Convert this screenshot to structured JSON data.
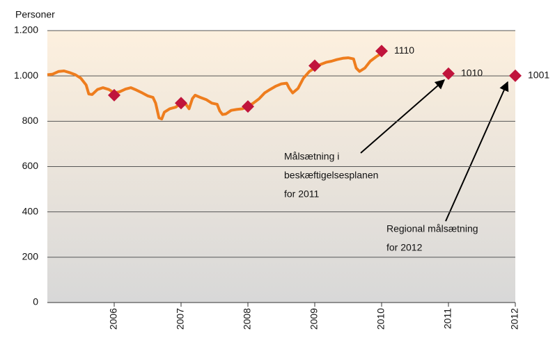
{
  "chart_data": {
    "type": "line",
    "y_label": "Personer",
    "xlim": [
      2005,
      2012
    ],
    "xticks": [
      2006,
      2007,
      2008,
      2009,
      2010,
      2011,
      2012
    ],
    "ylim": [
      0,
      1200
    ],
    "yticks": [
      0,
      200,
      400,
      600,
      800,
      {
        "value": 1000,
        "label": "1.000"
      },
      {
        "value": 1200,
        "label": "1.200"
      }
    ],
    "grid": true,
    "series": [
      {
        "color": "#ee7d1e",
        "x": [
          2005.0,
          2005.08,
          2005.17,
          2005.25,
          2005.33,
          2005.42,
          2005.5,
          2005.58,
          2005.62,
          2005.67,
          2005.75,
          2005.83,
          2005.92,
          2006.0,
          2006.08,
          2006.17,
          2006.25,
          2006.33,
          2006.42,
          2006.5,
          2006.58,
          2006.62,
          2006.67,
          2006.71,
          2006.75,
          2006.83,
          2006.92,
          2007.0,
          2007.08,
          2007.12,
          2007.17,
          2007.21,
          2007.29,
          2007.38,
          2007.46,
          2007.54,
          2007.58,
          2007.62,
          2007.67,
          2007.75,
          2007.83,
          2007.92,
          2008.0,
          2008.08,
          2008.17,
          2008.25,
          2008.33,
          2008.42,
          2008.5,
          2008.58,
          2008.62,
          2008.67,
          2008.75,
          2008.83,
          2008.92,
          2009.0,
          2009.08,
          2009.17,
          2009.25,
          2009.33,
          2009.42,
          2009.5,
          2009.58,
          2009.62,
          2009.67,
          2009.75,
          2009.83,
          2009.92,
          2010.0
        ],
        "values": [
          1005,
          1008,
          1020,
          1022,
          1015,
          1005,
          990,
          960,
          920,
          918,
          940,
          948,
          940,
          925,
          930,
          942,
          948,
          938,
          925,
          912,
          905,
          880,
          815,
          810,
          840,
          855,
          862,
          880,
          872,
          855,
          900,
          915,
          905,
          895,
          880,
          875,
          845,
          830,
          832,
          848,
          852,
          855,
          865,
          880,
          900,
          925,
          940,
          955,
          965,
          968,
          945,
          925,
          945,
          990,
          1020,
          1035,
          1050,
          1060,
          1065,
          1072,
          1078,
          1080,
          1075,
          1035,
          1020,
          1035,
          1065,
          1085,
          1100
        ]
      },
      {
        "color": "#c0143c",
        "marker": "diamond",
        "x": [
          2006,
          2007,
          2008,
          2009,
          2010,
          2011,
          2012
        ],
        "values": [
          915,
          880,
          865,
          1045,
          1110,
          1010,
          1001
        ]
      }
    ],
    "annotations": [
      {
        "text": [
          "Målsætning i",
          "beskæftigelsesplanen",
          "for 2011"
        ]
      },
      {
        "text": [
          "Regional målsætning",
          "for 2012"
        ]
      }
    ]
  }
}
